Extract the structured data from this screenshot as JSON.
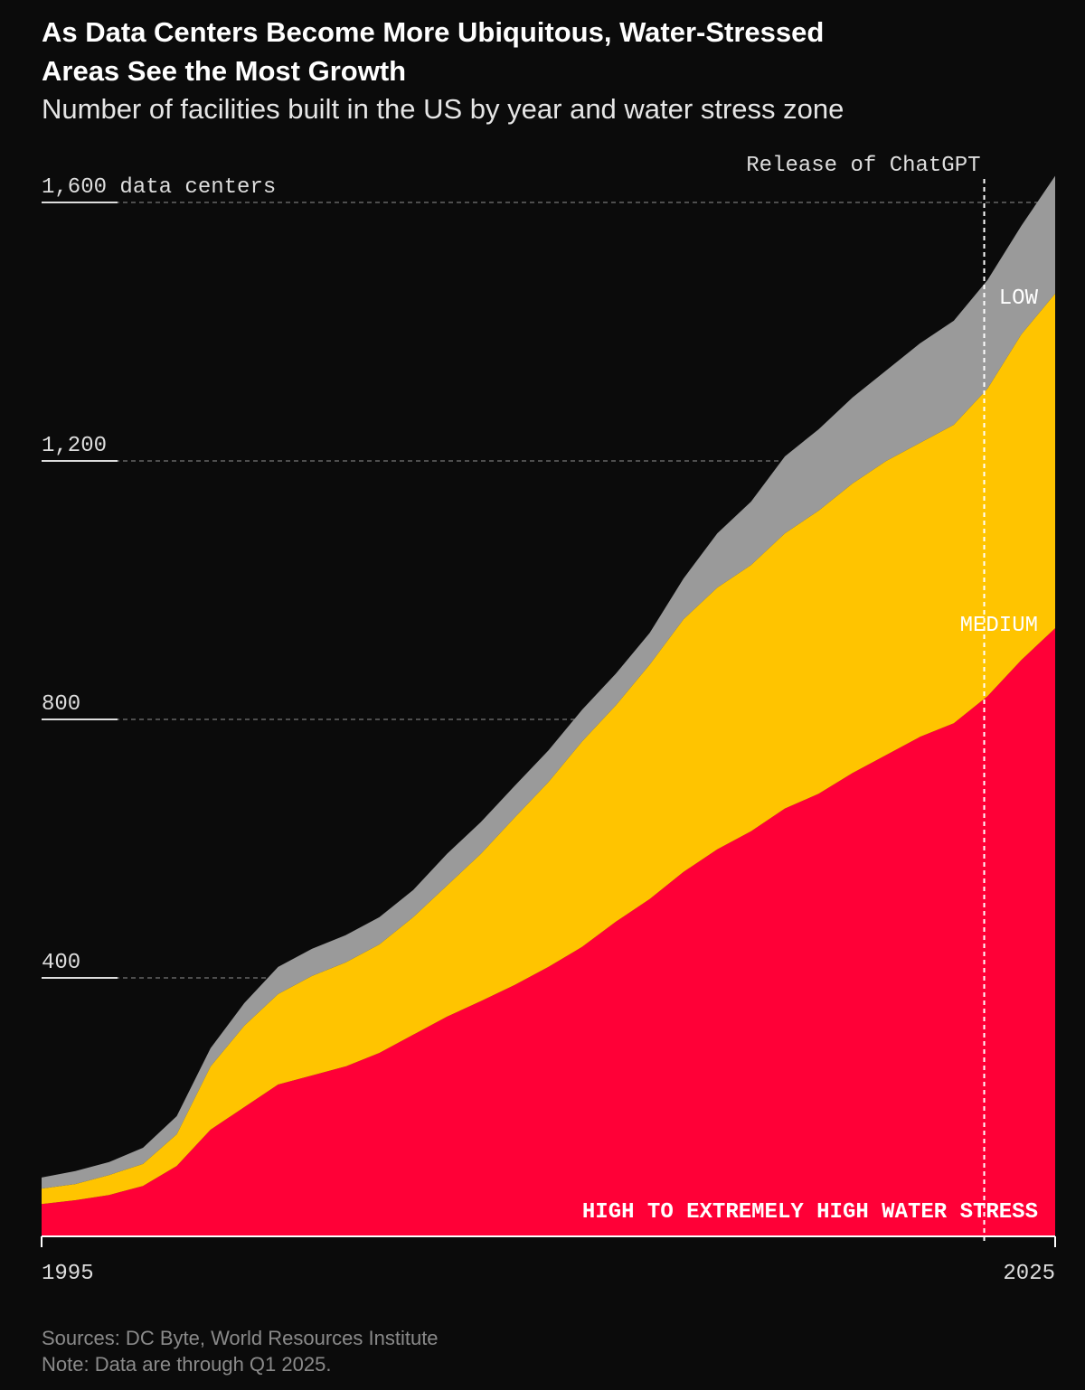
{
  "chart_data": {
    "type": "stacked-area",
    "title": "As Data Centers Become More Ubiquitous, Water-Stressed Areas See the Most Growth",
    "subtitle": "Number of facilities built in the US by year and water stress zone",
    "x": [
      1995,
      1996,
      1997,
      1998,
      1999,
      2000,
      2001,
      2002,
      2003,
      2004,
      2005,
      2006,
      2007,
      2008,
      2009,
      2010,
      2011,
      2012,
      2013,
      2014,
      2015,
      2016,
      2017,
      2018,
      2019,
      2020,
      2021,
      2022,
      2023,
      2024,
      2025
    ],
    "series": [
      {
        "name": "HIGH TO EXTREMELY HIGH WATER STRESS",
        "color": "#ff0037",
        "values": [
          50,
          56,
          64,
          78,
          109,
          165,
          200,
          235,
          249,
          263,
          284,
          312,
          340,
          364,
          389,
          417,
          448,
          487,
          522,
          564,
          599,
          627,
          662,
          685,
          717,
          745,
          773,
          794,
          836,
          892,
          941
        ]
      },
      {
        "name": "MEDIUM",
        "color": "#ffc400",
        "values": [
          24,
          25,
          31,
          34,
          49,
          98,
          126,
          140,
          154,
          161,
          168,
          182,
          203,
          228,
          259,
          286,
          318,
          335,
          363,
          391,
          405,
          412,
          426,
          438,
          448,
          455,
          455,
          462,
          476,
          504,
          518
        ]
      },
      {
        "name": "LOW",
        "color": "#9a9a9a",
        "values": [
          17,
          20,
          20,
          25,
          28,
          28,
          35,
          42,
          42,
          42,
          42,
          42,
          49,
          49,
          49,
          49,
          49,
          49,
          49,
          63,
          84,
          98,
          119,
          126,
          133,
          140,
          154,
          161,
          168,
          168,
          182
        ]
      }
    ],
    "xlim": [
      1995,
      2025
    ],
    "xticks": [
      1995,
      2025
    ],
    "ylim": [
      0,
      1650
    ],
    "yticks": [
      {
        "value": 400,
        "label": "400"
      },
      {
        "value": 800,
        "label": "800"
      },
      {
        "value": 1200,
        "label": "1,200"
      },
      {
        "value": 1600,
        "label": "1,600 data centers"
      }
    ],
    "grid": true,
    "annotation": {
      "text": "Release of ChatGPT",
      "x": 2022.9
    },
    "source": "Sources: DC Byte, World Resources Institute",
    "note": "Note: Data are through Q1 2025."
  }
}
